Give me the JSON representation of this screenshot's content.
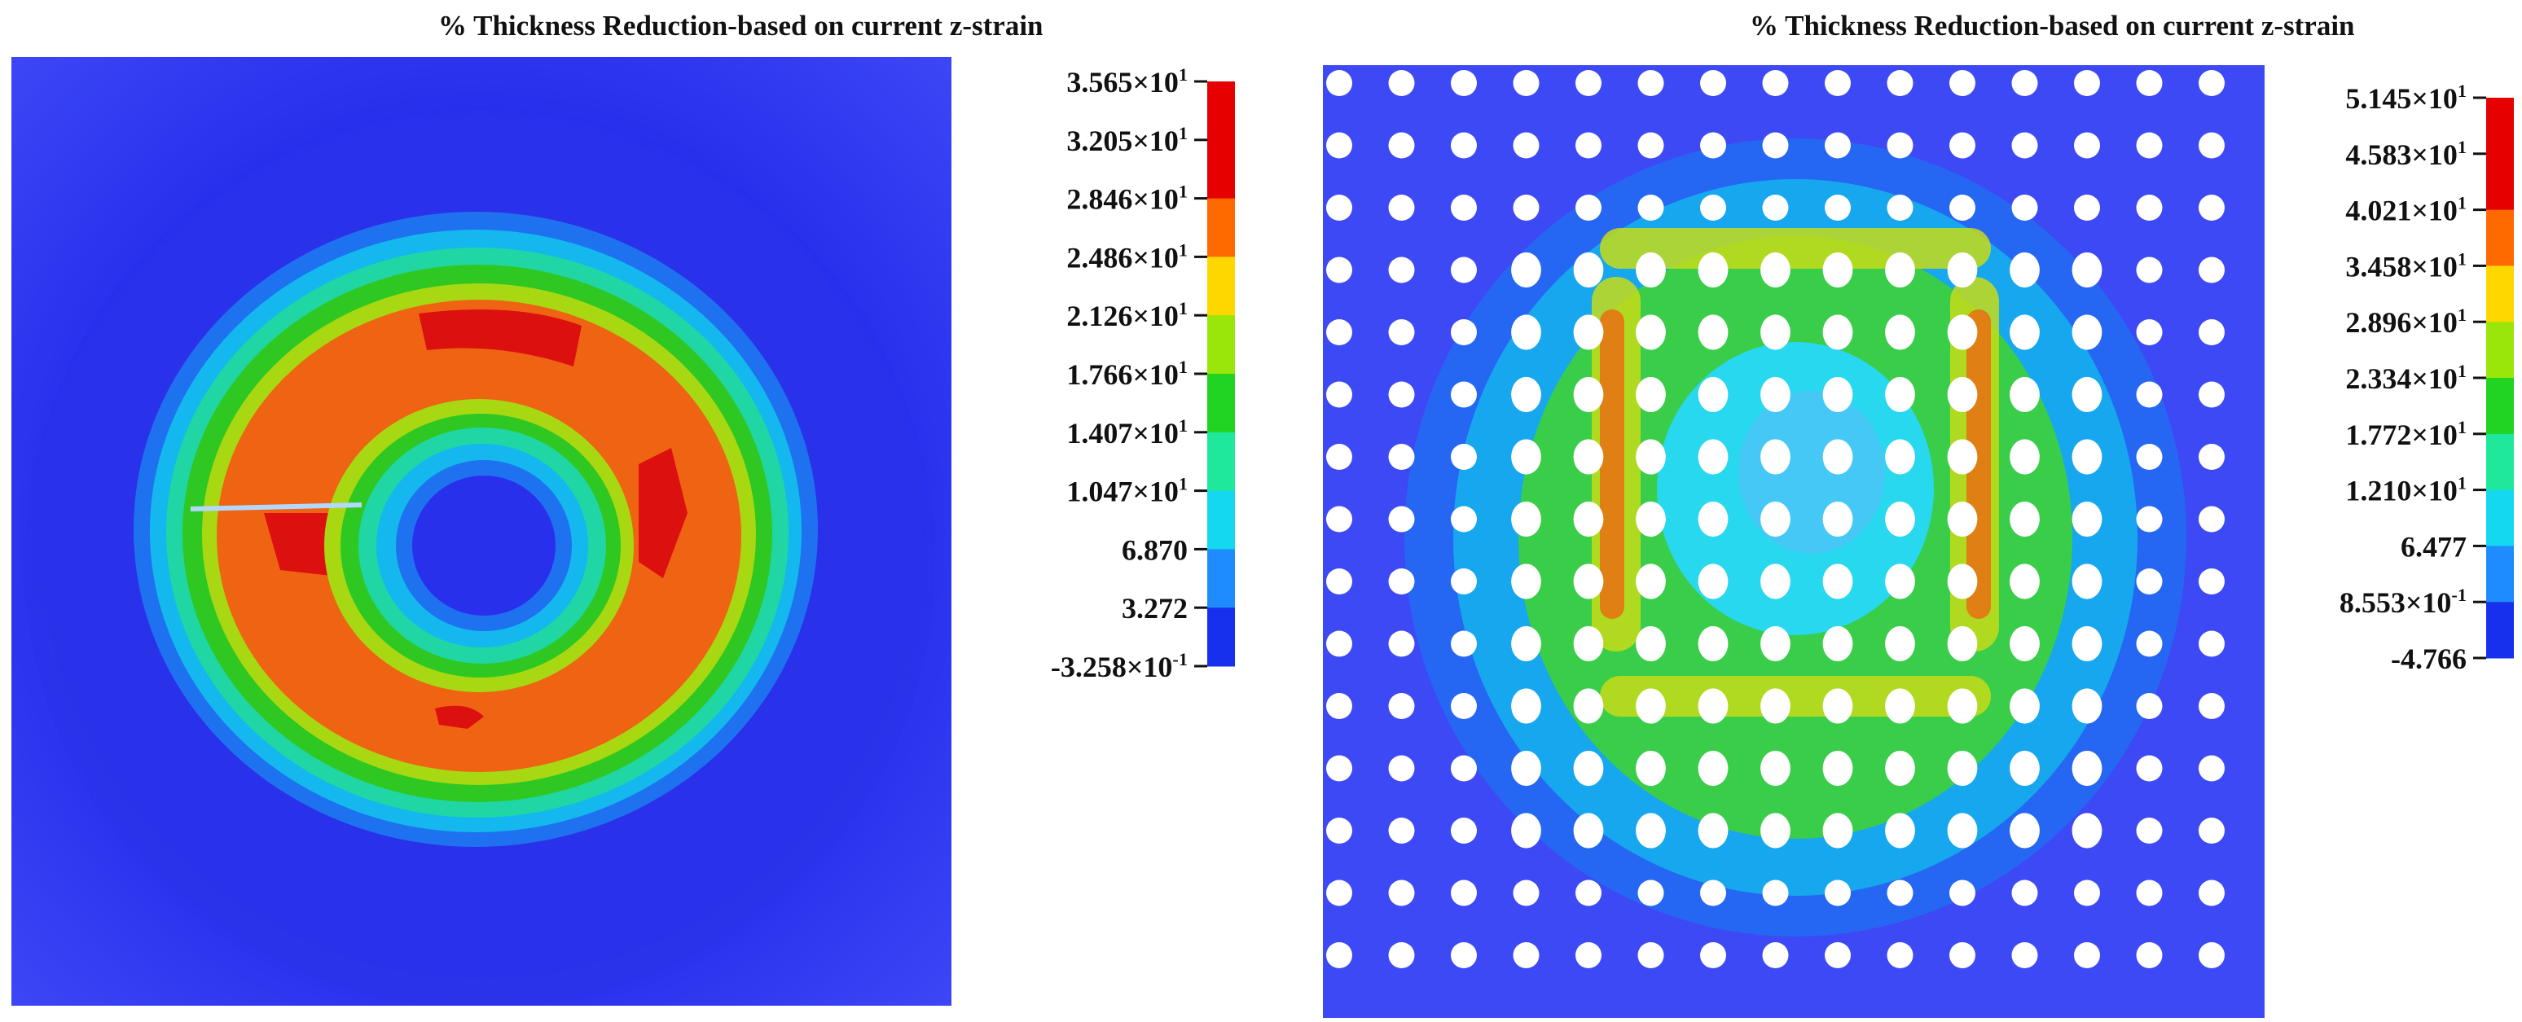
{
  "panels": [
    {
      "title": "% Thickness Reduction-based on current z-strain",
      "legend": {
        "colors": [
          "#e60000",
          "#ff6a00",
          "#ffd700",
          "#9be60a",
          "#22d422",
          "#1fe89a",
          "#14d8f0",
          "#1e8cff",
          "#1630ee"
        ],
        "labels": [
          {
            "mant": "3.565",
            "exp": "1"
          },
          {
            "mant": "3.205",
            "exp": "1"
          },
          {
            "mant": "2.846",
            "exp": "1"
          },
          {
            "mant": "2.486",
            "exp": "1"
          },
          {
            "mant": "2.126",
            "exp": "1"
          },
          {
            "mant": "1.766",
            "exp": "1"
          },
          {
            "mant": "1.407",
            "exp": "1"
          },
          {
            "mant": "1.047",
            "exp": "1"
          },
          {
            "mant": "6.870",
            "exp": ""
          },
          {
            "mant": "3.272",
            "exp": ""
          },
          {
            "mant": "-3.258",
            "exp": "-1"
          }
        ]
      }
    },
    {
      "title": "% Thickness Reduction-based on current z-strain",
      "legend": {
        "colors": [
          "#e60000",
          "#ff6a00",
          "#ffd700",
          "#9be60a",
          "#22d422",
          "#1fe89a",
          "#14d8f0",
          "#1e8cff",
          "#1630ee"
        ],
        "labels": [
          {
            "mant": "5.145",
            "exp": "1"
          },
          {
            "mant": "4.583",
            "exp": "1"
          },
          {
            "mant": "4.021",
            "exp": "1"
          },
          {
            "mant": "3.458",
            "exp": "1"
          },
          {
            "mant": "2.896",
            "exp": "1"
          },
          {
            "mant": "2.334",
            "exp": "1"
          },
          {
            "mant": "1.772",
            "exp": "1"
          },
          {
            "mant": "1.210",
            "exp": "1"
          },
          {
            "mant": "6.477",
            "exp": ""
          },
          {
            "mant": "8.553",
            "exp": "-1"
          },
          {
            "mant": "-4.766",
            "exp": ""
          }
        ]
      }
    }
  ]
}
